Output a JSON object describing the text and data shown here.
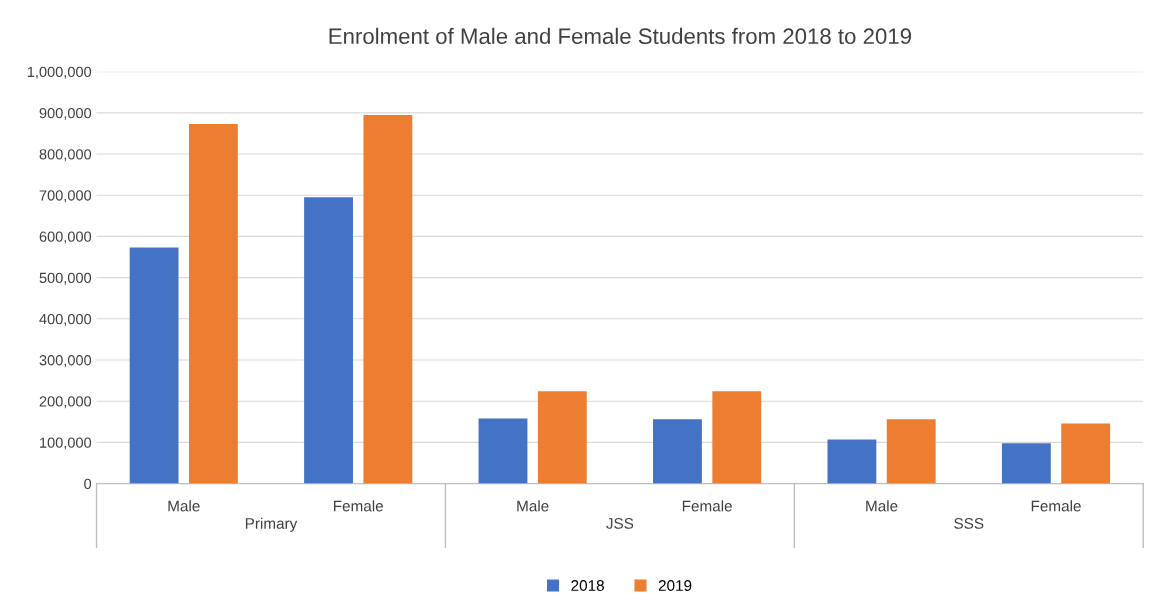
{
  "chart_data": {
    "type": "bar",
    "title": "Enrolment of Male and Female Students from 2018 to 2019",
    "categories": [
      "Male",
      "Female",
      "Male",
      "Female",
      "Male",
      "Female"
    ],
    "annotations": [
      "Primary",
      "JSS",
      "SSS"
    ],
    "series": [
      {
        "name": "2018",
        "color": "#4472c4",
        "values": [
          573000,
          695000,
          158000,
          156000,
          107000,
          98000
        ]
      },
      {
        "name": "2019",
        "color": "#ed7d31",
        "values": [
          873000,
          895000,
          224000,
          224000,
          156000,
          146000
        ]
      }
    ],
    "ylim": [
      0,
      1000000
    ],
    "yticks": [
      {
        "value": 0,
        "label": "0"
      },
      {
        "value": 100000,
        "label": "100,000"
      },
      {
        "value": 200000,
        "label": "200,000"
      },
      {
        "value": 300000,
        "label": "300,000"
      },
      {
        "value": 400000,
        "label": "400,000"
      },
      {
        "value": 500000,
        "label": "500,000"
      },
      {
        "value": 600000,
        "label": "600,000"
      },
      {
        "value": 700000,
        "label": "700,000"
      },
      {
        "value": 800000,
        "label": "800,000"
      },
      {
        "value": 900000,
        "label": "900,000"
      },
      {
        "value": 1000000,
        "label": "1,000,000"
      }
    ],
    "grid": "y",
    "legend": "bottom"
  }
}
